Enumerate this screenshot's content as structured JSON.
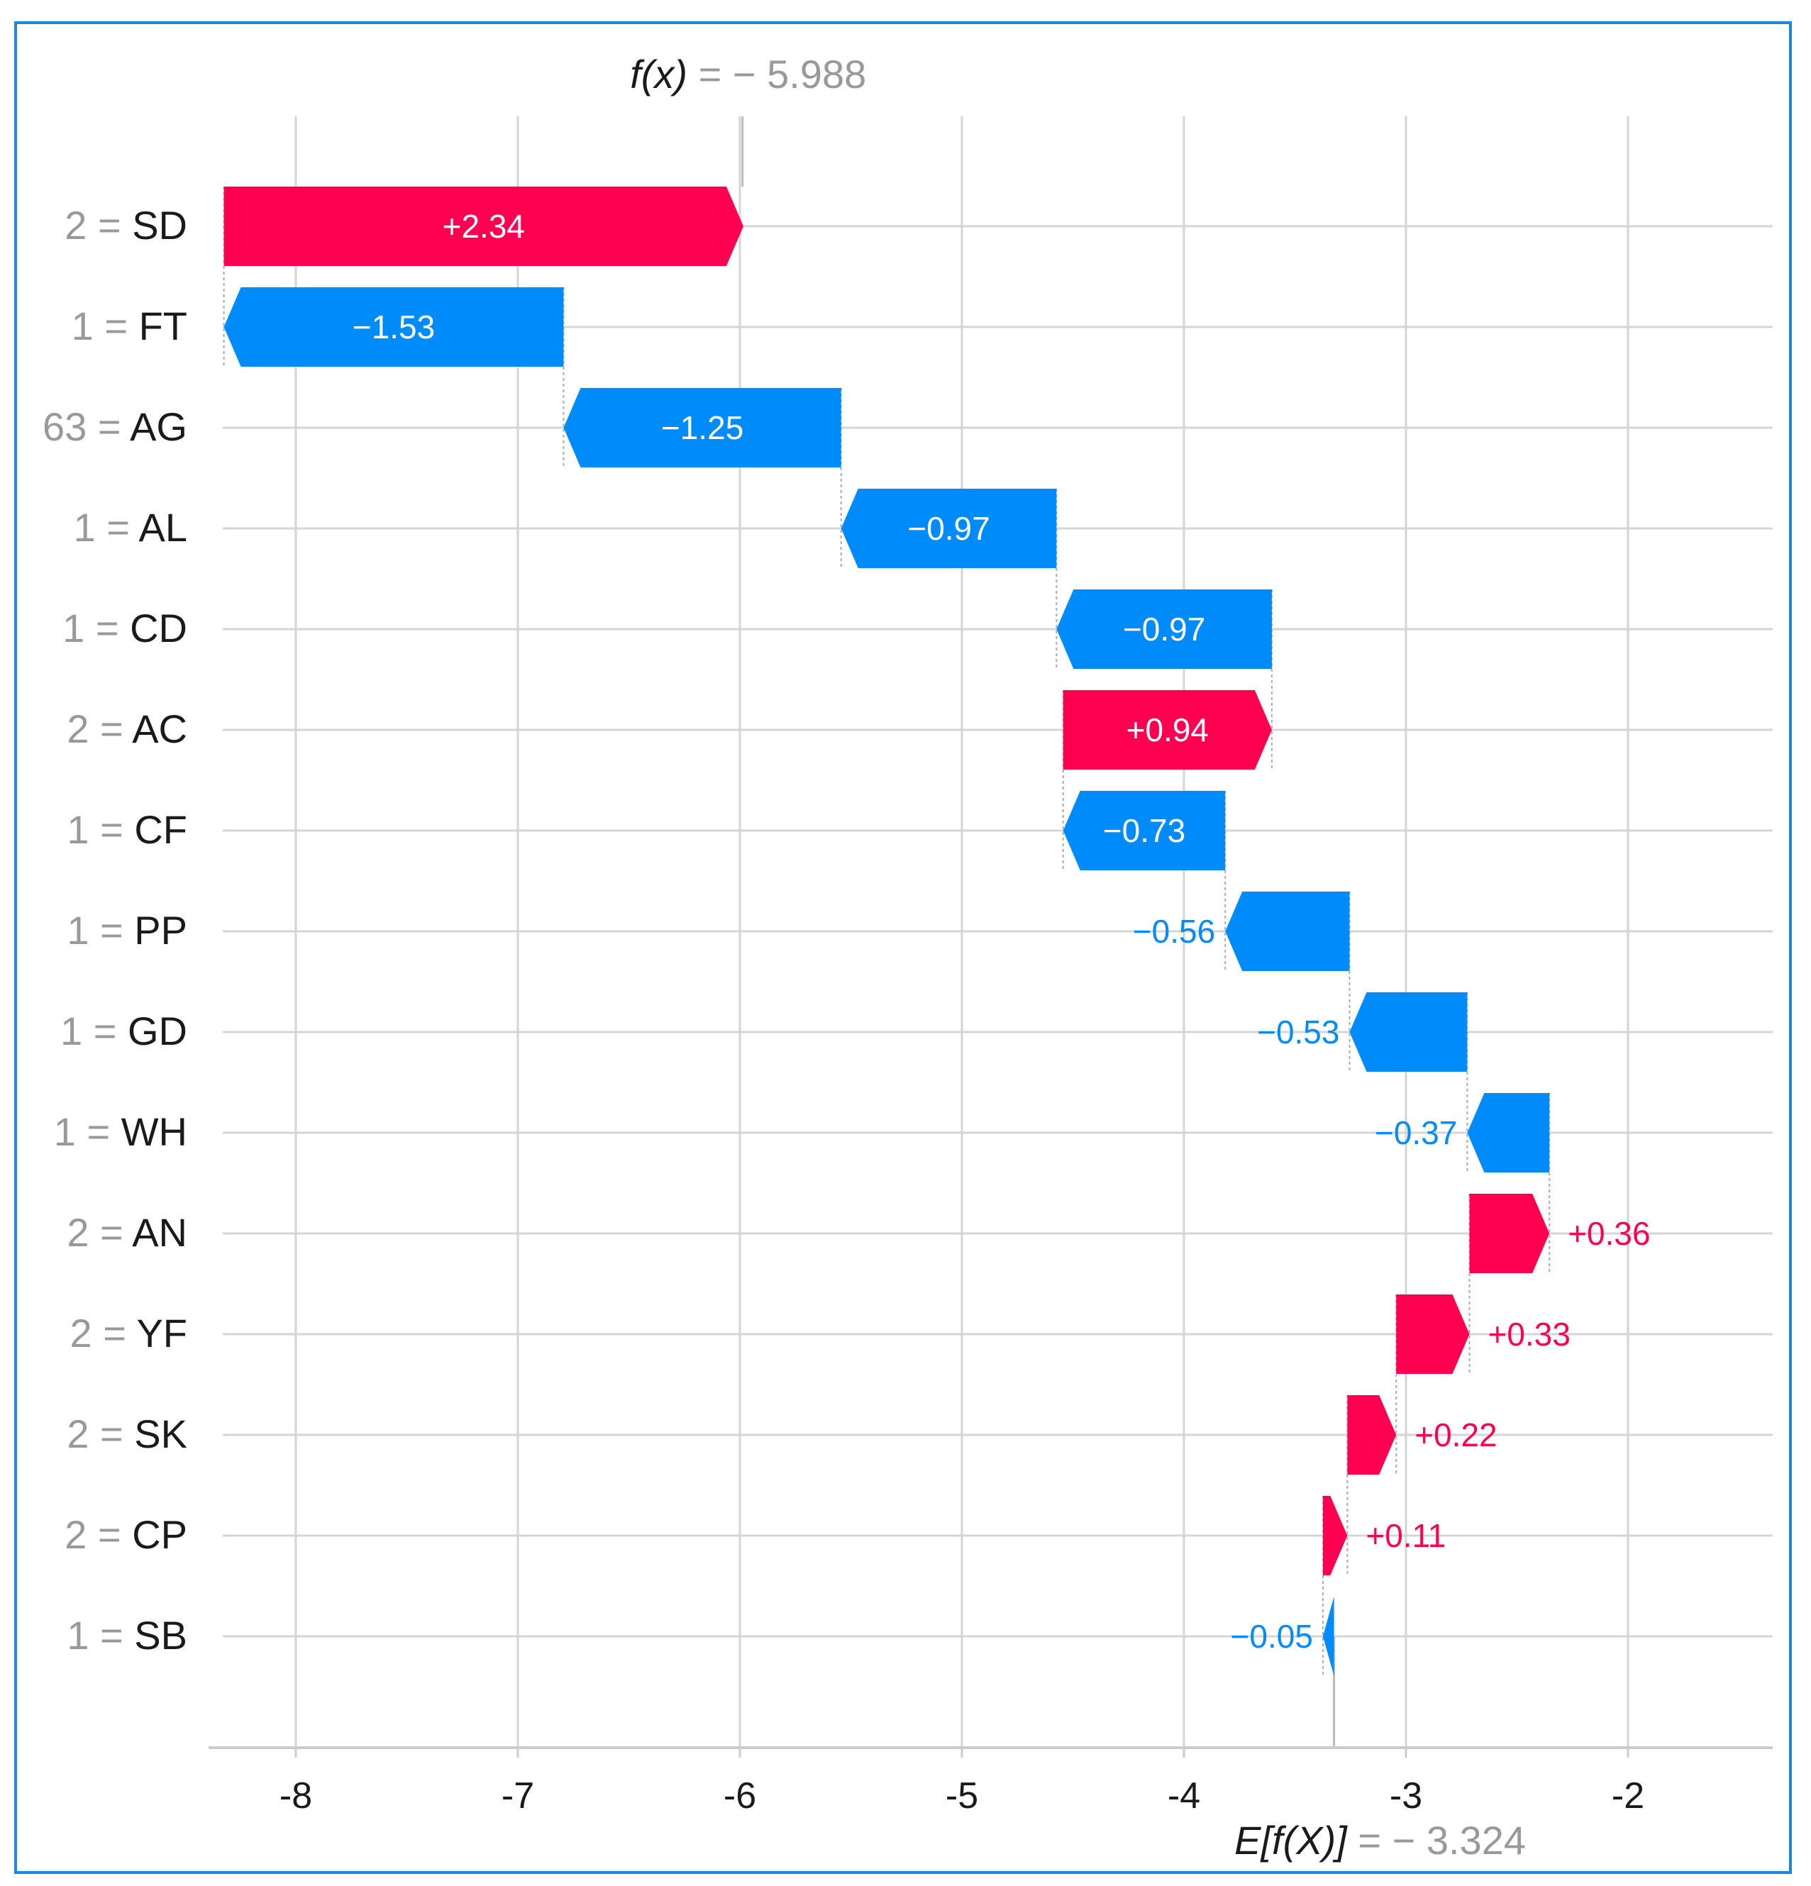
{
  "chart_data": {
    "type": "waterfall",
    "title": "",
    "fx_label": "f(x)",
    "fx_value_text": "= − 5.988",
    "ex_label": "E[f(X)]",
    "ex_value_text": "= − 3.324",
    "base_value": -3.324,
    "output_value": -5.988,
    "xlim": [
      -8.4,
      -1.35
    ],
    "xticks": [
      -8,
      -7,
      -6,
      -5,
      -4,
      -3,
      -2
    ],
    "xtick_labels": [
      "-8",
      "-7",
      "-6",
      "-5",
      "-4",
      "-3",
      "-2"
    ],
    "colors": {
      "positive": "#ff0051",
      "negative": "#008bfb",
      "grid": "#d4d4d4",
      "axis": "#cccccc",
      "text_dark": "#1a1a1a",
      "text_gray": "#999999"
    },
    "features": [
      {
        "value": "2",
        "name": "SD",
        "shap": 2.34,
        "label": "+2.34"
      },
      {
        "value": "1",
        "name": "FT",
        "shap": -1.53,
        "label": "−1.53"
      },
      {
        "value": "63",
        "name": "AG",
        "shap": -1.25,
        "label": "−1.25"
      },
      {
        "value": "1",
        "name": "AL",
        "shap": -0.97,
        "label": "−0.97"
      },
      {
        "value": "1",
        "name": "CD",
        "shap": -0.97,
        "label": "−0.97"
      },
      {
        "value": "2",
        "name": "AC",
        "shap": 0.94,
        "label": "+0.94"
      },
      {
        "value": "1",
        "name": "CF",
        "shap": -0.73,
        "label": "−0.73"
      },
      {
        "value": "1",
        "name": "PP",
        "shap": -0.56,
        "label": "−0.56"
      },
      {
        "value": "1",
        "name": "GD",
        "shap": -0.53,
        "label": "−0.53"
      },
      {
        "value": "1",
        "name": "WH",
        "shap": -0.37,
        "label": "−0.37"
      },
      {
        "value": "2",
        "name": "AN",
        "shap": 0.36,
        "label": "+0.36"
      },
      {
        "value": "2",
        "name": "YF",
        "shap": 0.33,
        "label": "+0.33"
      },
      {
        "value": "2",
        "name": "SK",
        "shap": 0.22,
        "label": "+0.22"
      },
      {
        "value": "2",
        "name": "CP",
        "shap": 0.11,
        "label": "+0.11"
      },
      {
        "value": "1",
        "name": "SB",
        "shap": -0.05,
        "label": "−0.05"
      }
    ]
  }
}
